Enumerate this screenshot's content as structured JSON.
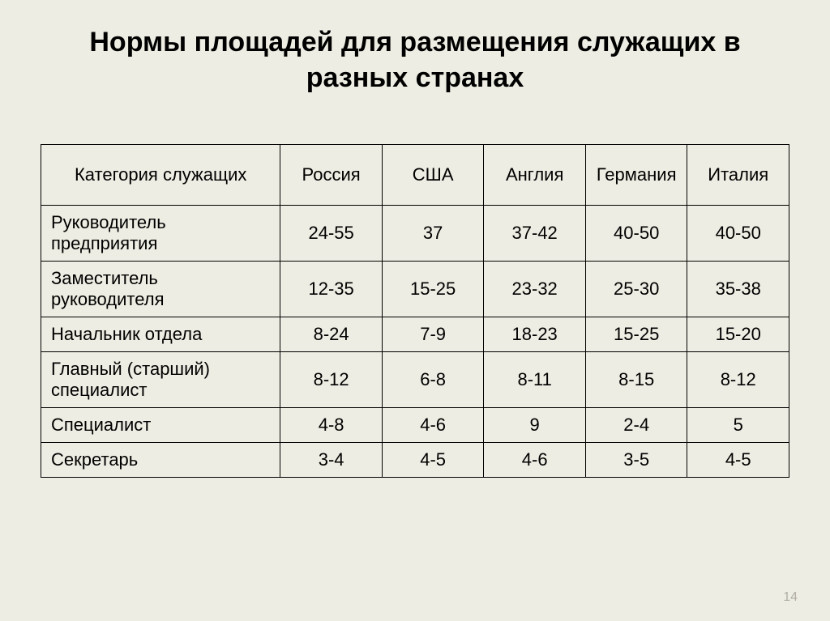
{
  "title": "Нормы площадей для размещения служащих в разных странах",
  "table": {
    "headers": [
      "Категория служащих",
      "Россия",
      "США",
      "Англия",
      "Германия",
      "Италия"
    ],
    "rows": [
      [
        "Руководитель предприятия",
        "24-55",
        "37",
        "37-42",
        "40-50",
        "40-50"
      ],
      [
        "Заместитель руководителя",
        "12-35",
        "15-25",
        "23-32",
        "25-30",
        "35-38"
      ],
      [
        "Начальник отдела",
        "8-24",
        "7-9",
        "18-23",
        "15-25",
        "15-20"
      ],
      [
        "Главный (старший) специалист",
        "8-12",
        "6-8",
        "8-11",
        "8-15",
        "8-12"
      ],
      [
        "Специалист",
        "4-8",
        "4-6",
        "9",
        "2-4",
        "5"
      ],
      [
        "Секретарь",
        "3-4",
        "4-5",
        "4-6",
        "3-5",
        "4-5"
      ]
    ]
  },
  "pageNumber": "14",
  "colors": {
    "background": "#eeede3",
    "border": "#000000",
    "text": "#000000",
    "pageNumber": "#b0aea4"
  }
}
